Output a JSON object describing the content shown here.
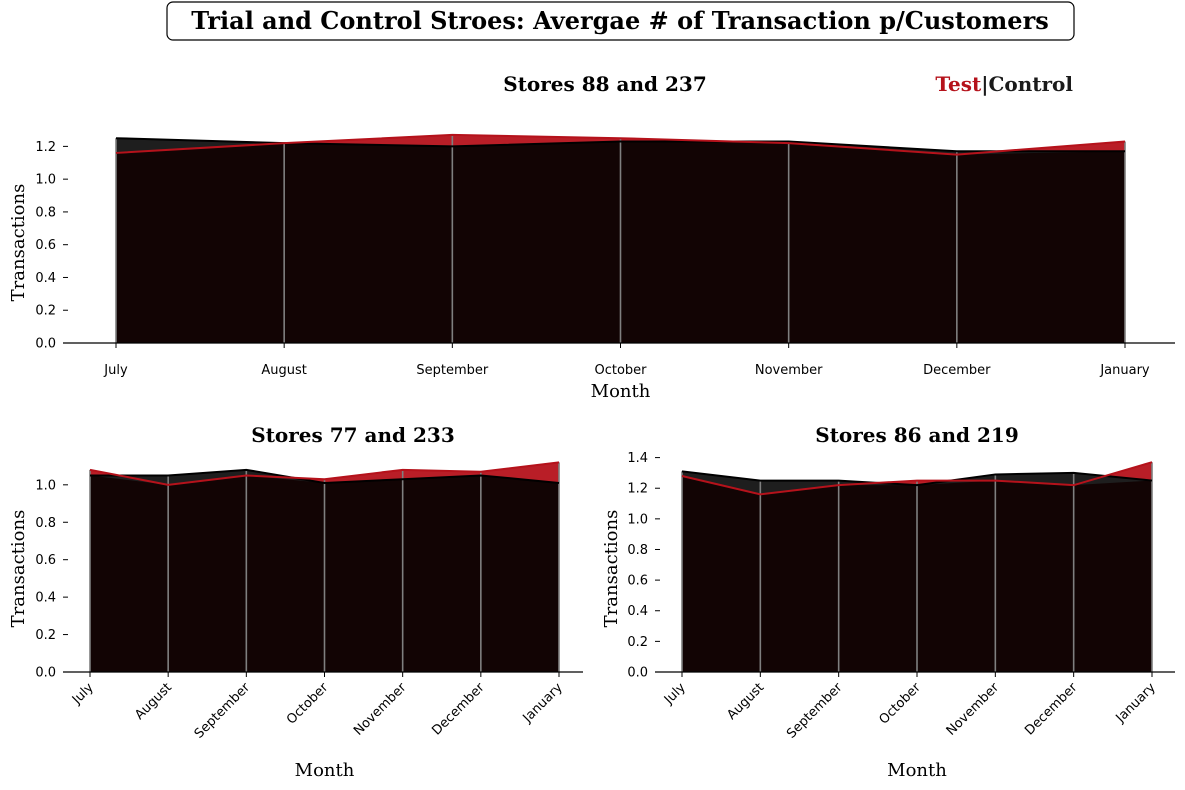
{
  "figure": {
    "title": "Trial and Control Stroes: Avergae # of Transaction p/Customers",
    "legend": {
      "test_label": "Test",
      "separator": "|",
      "control_label": "Control"
    }
  },
  "colors": {
    "test": "#b5121b",
    "control": "#1a1a1a",
    "fill_dark": "#120404",
    "gridline": "#7f7f7f"
  },
  "chart_data": [
    {
      "type": "area",
      "title": "Stores 88 and 237",
      "xlabel": "Month",
      "ylabel": "Transactions",
      "categories": [
        "July",
        "August",
        "September",
        "October",
        "November",
        "December",
        "January"
      ],
      "series": [
        {
          "name": "Test",
          "values": [
            1.16,
            1.22,
            1.27,
            1.25,
            1.22,
            1.15,
            1.23
          ]
        },
        {
          "name": "Control",
          "values": [
            1.25,
            1.22,
            1.2,
            1.23,
            1.23,
            1.17,
            1.17
          ]
        }
      ],
      "ylim": [
        0,
        1.3
      ],
      "yticks": [
        "0.0",
        "0.2",
        "0.4",
        "0.6",
        "0.8",
        "1.0",
        "1.2"
      ],
      "ytick_values": [
        0,
        0.2,
        0.4,
        0.6,
        0.8,
        1.0,
        1.2
      ],
      "xtick_rotation": 0,
      "grid": "vertical"
    },
    {
      "type": "area",
      "title": "Stores 77 and 233",
      "xlabel": "Month",
      "ylabel": "Transactions",
      "categories": [
        "July",
        "August",
        "September",
        "October",
        "November",
        "December",
        "January"
      ],
      "series": [
        {
          "name": "Test",
          "values": [
            1.08,
            1.0,
            1.05,
            1.03,
            1.08,
            1.07,
            1.12
          ]
        },
        {
          "name": "Control",
          "values": [
            1.05,
            1.05,
            1.08,
            1.01,
            1.03,
            1.05,
            1.01
          ]
        }
      ],
      "ylim": [
        0,
        1.17
      ],
      "yticks": [
        "0.0",
        "0.2",
        "0.4",
        "0.6",
        "0.8",
        "1.0"
      ],
      "ytick_values": [
        0,
        0.2,
        0.4,
        0.6,
        0.8,
        1.0
      ],
      "xtick_rotation": -45,
      "grid": "vertical"
    },
    {
      "type": "area",
      "title": "Stores 86 and 219",
      "xlabel": "Month",
      "ylabel": "Transactions",
      "categories": [
        "July",
        "August",
        "September",
        "October",
        "November",
        "December",
        "January"
      ],
      "series": [
        {
          "name": "Test",
          "values": [
            1.28,
            1.16,
            1.22,
            1.25,
            1.25,
            1.22,
            1.37
          ]
        },
        {
          "name": "Control",
          "values": [
            1.31,
            1.25,
            1.25,
            1.22,
            1.29,
            1.3,
            1.25
          ]
        }
      ],
      "ylim": [
        0,
        1.43
      ],
      "yticks": [
        "0.0",
        "0.2",
        "0.4",
        "0.6",
        "0.8",
        "1.0",
        "1.2",
        "1.4"
      ],
      "ytick_values": [
        0,
        0.2,
        0.4,
        0.6,
        0.8,
        1.0,
        1.2,
        1.4
      ],
      "xtick_rotation": -45,
      "grid": "vertical"
    }
  ]
}
